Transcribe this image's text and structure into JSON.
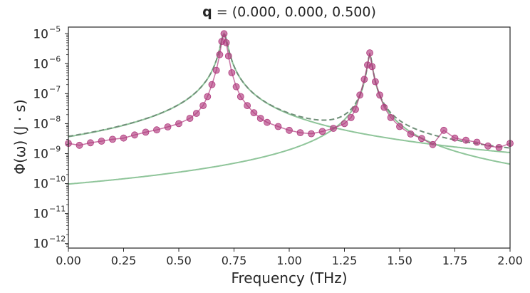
{
  "chart_data": {
    "type": "scatter",
    "title_bold": "q",
    "title_rest": " = (0.000, 0.000, 0.500)",
    "xlabel": "Frequency (THz)",
    "ylabel": "Φ(ω) (J · s)",
    "xlim": [
      0.0,
      2.0
    ],
    "ylim_log10": [
      -12.15,
      -4.78
    ],
    "yscale": "log",
    "grid": false,
    "x_ticks": [
      "0.00",
      "0.25",
      "0.50",
      "0.75",
      "1.00",
      "1.25",
      "1.50",
      "1.75",
      "2.00"
    ],
    "y_ticks": [
      {
        "base": "10",
        "exp": "−12",
        "value": -12
      },
      {
        "base": "10",
        "exp": "−11",
        "value": -11
      },
      {
        "base": "10",
        "exp": "−10",
        "value": -10
      },
      {
        "base": "10",
        "exp": "−9",
        "value": -9
      },
      {
        "base": "10",
        "exp": "−8",
        "value": -8
      },
      {
        "base": "10",
        "exp": "−7",
        "value": -7
      },
      {
        "base": "10",
        "exp": "−6",
        "value": -6
      },
      {
        "base": "10",
        "exp": "−5",
        "value": -5
      }
    ],
    "fit_peaks": [
      {
        "center": 0.705,
        "height": 1e-05,
        "hwhm": 0.0135
      },
      {
        "center": 1.365,
        "height": 2e-06,
        "hwhm": 0.0095
      }
    ],
    "series": [
      {
        "kind": "scatter-line",
        "color": "#b03a7e",
        "points": [
          [
            0.0,
            2.2e-09
          ],
          [
            0.05,
            1.9e-09
          ],
          [
            0.1,
            2.3e-09
          ],
          [
            0.15,
            2.6e-09
          ],
          [
            0.2,
            3e-09
          ],
          [
            0.25,
            3.3e-09
          ],
          [
            0.3,
            4.2e-09
          ],
          [
            0.35,
            5.2e-09
          ],
          [
            0.4,
            6.2e-09
          ],
          [
            0.45,
            7.8e-09
          ],
          [
            0.5,
            1e-08
          ],
          [
            0.55,
            1.5e-08
          ],
          [
            0.58,
            2.2e-08
          ],
          [
            0.61,
            4e-08
          ],
          [
            0.63,
            8e-08
          ],
          [
            0.65,
            2e-07
          ],
          [
            0.67,
            6e-07
          ],
          [
            0.685,
            2e-06
          ],
          [
            0.695,
            5.5e-06
          ],
          [
            0.705,
            1e-05
          ],
          [
            0.715,
            5e-06
          ],
          [
            0.725,
            1.8e-06
          ],
          [
            0.74,
            5e-07
          ],
          [
            0.76,
            1.7e-07
          ],
          [
            0.78,
            8e-08
          ],
          [
            0.81,
            4e-08
          ],
          [
            0.84,
            2.3e-08
          ],
          [
            0.87,
            1.5e-08
          ],
          [
            0.9,
            1.1e-08
          ],
          [
            0.95,
            8e-09
          ],
          [
            1.0,
            6e-09
          ],
          [
            1.05,
            5e-09
          ],
          [
            1.1,
            4.6e-09
          ],
          [
            1.15,
            5.5e-09
          ],
          [
            1.2,
            7e-09
          ],
          [
            1.25,
            1e-08
          ],
          [
            1.28,
            1.6e-08
          ],
          [
            1.3,
            3e-08
          ],
          [
            1.32,
            9e-08
          ],
          [
            1.34,
            3e-07
          ],
          [
            1.355,
            9e-07
          ],
          [
            1.365,
            2.3e-06
          ],
          [
            1.375,
            8e-07
          ],
          [
            1.39,
            2.5e-07
          ],
          [
            1.41,
            9e-08
          ],
          [
            1.43,
            3.5e-08
          ],
          [
            1.46,
            1.6e-08
          ],
          [
            1.5,
            8e-09
          ],
          [
            1.55,
            4.5e-09
          ],
          [
            1.6,
            3.2e-09
          ],
          [
            1.65,
            2e-09
          ],
          [
            1.7,
            6e-09
          ],
          [
            1.75,
            3.3e-09
          ],
          [
            1.8,
            2.8e-09
          ],
          [
            1.85,
            2.4e-09
          ],
          [
            1.9,
            1.8e-09
          ],
          [
            1.95,
            1.6e-09
          ],
          [
            2.0,
            2.2e-09
          ]
        ]
      },
      {
        "kind": "lorentzian",
        "peak": 0,
        "color": "#8fc59a"
      },
      {
        "kind": "lorentzian",
        "peak": 1,
        "color": "#8fc59a"
      },
      {
        "kind": "sum-dashed",
        "color": "#6f8f78"
      }
    ]
  }
}
